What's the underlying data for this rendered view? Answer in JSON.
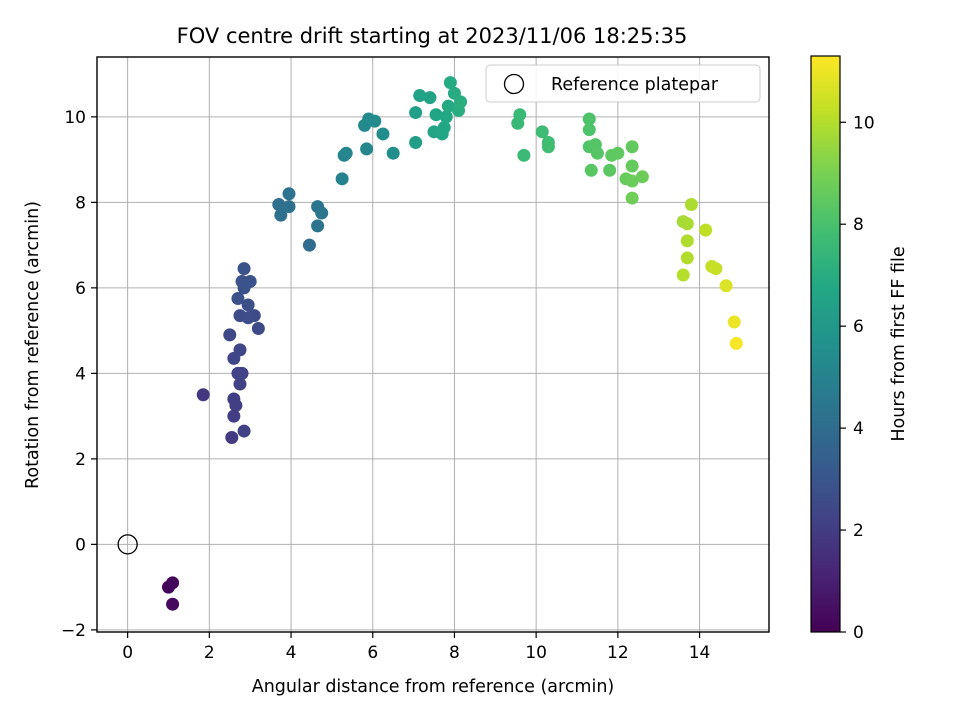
{
  "chart_data": {
    "type": "scatter",
    "title": "FOV centre drift starting at 2023/11/06 18:25:35",
    "xlabel": "Angular distance from reference (arcmin)",
    "ylabel": "Rotation from reference (arcmin)",
    "xlim": [
      -0.75,
      15.7
    ],
    "ylim": [
      -2.05,
      11.4
    ],
    "xticks": [
      0,
      2,
      4,
      6,
      8,
      10,
      12,
      14
    ],
    "yticks": [
      -2,
      0,
      2,
      4,
      6,
      8,
      10
    ],
    "grid": true,
    "legend": {
      "placement": "top-right",
      "entries": [
        "Reference platepar"
      ]
    },
    "reference_point": {
      "x": 0,
      "y": 0
    },
    "colorbar": {
      "label": "Hours from first FF file",
      "range": [
        0,
        11.3
      ],
      "ticks": [
        0,
        2,
        4,
        6,
        8,
        10
      ],
      "colormap": "viridis"
    },
    "points": [
      {
        "x": 1.0,
        "y": -1.0,
        "h": 0.1
      },
      {
        "x": 1.1,
        "y": -0.9,
        "h": 0.2
      },
      {
        "x": 1.1,
        "y": -1.4,
        "h": 0.3
      },
      {
        "x": 1.85,
        "y": 3.5,
        "h": 1.8
      },
      {
        "x": 2.55,
        "y": 2.5,
        "h": 1.9
      },
      {
        "x": 2.6,
        "y": 3.0,
        "h": 2.0
      },
      {
        "x": 2.6,
        "y": 3.4,
        "h": 2.05
      },
      {
        "x": 2.65,
        "y": 3.25,
        "h": 2.1
      },
      {
        "x": 2.85,
        "y": 2.65,
        "h": 2.15
      },
      {
        "x": 2.75,
        "y": 3.75,
        "h": 2.2
      },
      {
        "x": 2.7,
        "y": 4.0,
        "h": 2.25
      },
      {
        "x": 2.8,
        "y": 4.0,
        "h": 2.3
      },
      {
        "x": 2.6,
        "y": 4.35,
        "h": 2.35
      },
      {
        "x": 2.75,
        "y": 4.55,
        "h": 2.4
      },
      {
        "x": 2.5,
        "y": 4.9,
        "h": 2.45
      },
      {
        "x": 3.2,
        "y": 5.05,
        "h": 2.5
      },
      {
        "x": 3.1,
        "y": 5.35,
        "h": 2.55
      },
      {
        "x": 2.75,
        "y": 5.35,
        "h": 2.6
      },
      {
        "x": 2.95,
        "y": 5.3,
        "h": 2.65
      },
      {
        "x": 2.95,
        "y": 5.6,
        "h": 2.7
      },
      {
        "x": 2.7,
        "y": 5.75,
        "h": 2.75
      },
      {
        "x": 2.85,
        "y": 6.0,
        "h": 2.8
      },
      {
        "x": 2.8,
        "y": 6.15,
        "h": 2.85
      },
      {
        "x": 3.0,
        "y": 6.15,
        "h": 2.9
      },
      {
        "x": 2.85,
        "y": 6.45,
        "h": 2.95
      },
      {
        "x": 4.45,
        "y": 7.0,
        "h": 4.0
      },
      {
        "x": 3.75,
        "y": 7.7,
        "h": 4.1
      },
      {
        "x": 3.7,
        "y": 7.95,
        "h": 4.15
      },
      {
        "x": 3.95,
        "y": 7.9,
        "h": 4.2
      },
      {
        "x": 3.95,
        "y": 8.2,
        "h": 4.25
      },
      {
        "x": 4.65,
        "y": 7.45,
        "h": 4.3
      },
      {
        "x": 4.65,
        "y": 7.9,
        "h": 4.35
      },
      {
        "x": 4.75,
        "y": 7.75,
        "h": 4.4
      },
      {
        "x": 5.25,
        "y": 8.55,
        "h": 5.0
      },
      {
        "x": 5.3,
        "y": 9.1,
        "h": 5.1
      },
      {
        "x": 5.35,
        "y": 9.15,
        "h": 5.15
      },
      {
        "x": 5.85,
        "y": 9.25,
        "h": 5.2
      },
      {
        "x": 5.8,
        "y": 9.8,
        "h": 5.3
      },
      {
        "x": 5.9,
        "y": 9.95,
        "h": 5.35
      },
      {
        "x": 6.05,
        "y": 9.9,
        "h": 5.4
      },
      {
        "x": 6.25,
        "y": 9.6,
        "h": 5.45
      },
      {
        "x": 6.5,
        "y": 9.15,
        "h": 5.5
      },
      {
        "x": 7.05,
        "y": 9.4,
        "h": 6.3
      },
      {
        "x": 7.05,
        "y": 10.1,
        "h": 6.4
      },
      {
        "x": 7.15,
        "y": 10.5,
        "h": 6.5
      },
      {
        "x": 7.4,
        "y": 10.45,
        "h": 6.55
      },
      {
        "x": 7.5,
        "y": 9.65,
        "h": 6.6
      },
      {
        "x": 7.55,
        "y": 10.05,
        "h": 6.65
      },
      {
        "x": 7.7,
        "y": 9.6,
        "h": 6.7
      },
      {
        "x": 7.75,
        "y": 9.75,
        "h": 6.75
      },
      {
        "x": 7.8,
        "y": 10.0,
        "h": 6.8
      },
      {
        "x": 7.85,
        "y": 10.25,
        "h": 6.85
      },
      {
        "x": 7.9,
        "y": 10.8,
        "h": 6.9
      },
      {
        "x": 8.0,
        "y": 10.55,
        "h": 6.95
      },
      {
        "x": 8.1,
        "y": 10.15,
        "h": 7.0
      },
      {
        "x": 8.15,
        "y": 10.35,
        "h": 7.05
      },
      {
        "x": 9.55,
        "y": 9.85,
        "h": 7.5
      },
      {
        "x": 9.6,
        "y": 10.05,
        "h": 7.55
      },
      {
        "x": 9.7,
        "y": 9.1,
        "h": 7.6
      },
      {
        "x": 10.15,
        "y": 9.65,
        "h": 7.7
      },
      {
        "x": 10.3,
        "y": 9.4,
        "h": 7.75
      },
      {
        "x": 10.3,
        "y": 9.3,
        "h": 7.8
      },
      {
        "x": 11.3,
        "y": 9.95,
        "h": 8.1
      },
      {
        "x": 11.3,
        "y": 9.7,
        "h": 8.15
      },
      {
        "x": 11.3,
        "y": 9.3,
        "h": 8.2
      },
      {
        "x": 11.45,
        "y": 9.35,
        "h": 8.25
      },
      {
        "x": 11.5,
        "y": 9.15,
        "h": 8.3
      },
      {
        "x": 11.35,
        "y": 8.75,
        "h": 8.35
      },
      {
        "x": 11.8,
        "y": 8.75,
        "h": 8.4
      },
      {
        "x": 11.85,
        "y": 9.1,
        "h": 8.45
      },
      {
        "x": 12.0,
        "y": 9.15,
        "h": 8.5
      },
      {
        "x": 12.35,
        "y": 9.3,
        "h": 8.55
      },
      {
        "x": 12.35,
        "y": 8.85,
        "h": 8.6
      },
      {
        "x": 12.2,
        "y": 8.55,
        "h": 8.65
      },
      {
        "x": 12.35,
        "y": 8.5,
        "h": 8.7
      },
      {
        "x": 12.6,
        "y": 8.6,
        "h": 8.75
      },
      {
        "x": 12.35,
        "y": 8.1,
        "h": 8.8
      },
      {
        "x": 13.6,
        "y": 7.55,
        "h": 9.8
      },
      {
        "x": 13.7,
        "y": 7.5,
        "h": 9.85
      },
      {
        "x": 13.8,
        "y": 7.95,
        "h": 9.9
      },
      {
        "x": 13.7,
        "y": 7.1,
        "h": 9.95
      },
      {
        "x": 13.7,
        "y": 6.7,
        "h": 10.0
      },
      {
        "x": 13.6,
        "y": 6.3,
        "h": 10.05
      },
      {
        "x": 14.15,
        "y": 7.35,
        "h": 10.2
      },
      {
        "x": 14.3,
        "y": 6.5,
        "h": 10.3
      },
      {
        "x": 14.4,
        "y": 6.45,
        "h": 10.35
      },
      {
        "x": 14.65,
        "y": 6.05,
        "h": 10.7
      },
      {
        "x": 14.85,
        "y": 5.2,
        "h": 11.0
      },
      {
        "x": 14.9,
        "y": 4.7,
        "h": 11.2
      }
    ]
  }
}
